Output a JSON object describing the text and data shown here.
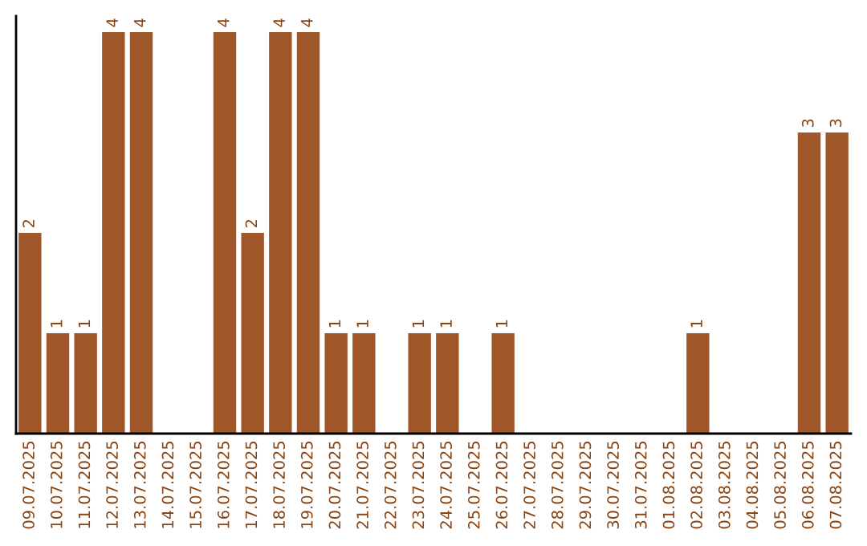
{
  "chart_data": {
    "type": "bar",
    "categories": [
      "09.07.2025",
      "10.07.2025",
      "11.07.2025",
      "12.07.2025",
      "13.07.2025",
      "14.07.2025",
      "15.07.2025",
      "16.07.2025",
      "17.07.2025",
      "18.07.2025",
      "19.07.2025",
      "20.07.2025",
      "21.07.2025",
      "22.07.2025",
      "23.07.2025",
      "24.07.2025",
      "25.07.2025",
      "26.07.2025",
      "27.07.2025",
      "28.07.2025",
      "29.07.2025",
      "30.07.2025",
      "31.07.2025",
      "01.08.2025",
      "02.08.2025",
      "03.08.2025",
      "04.08.2025",
      "05.08.2025",
      "06.08.2025",
      "07.08.2025"
    ],
    "values": [
      2,
      1,
      1,
      4,
      4,
      0,
      0,
      4,
      2,
      4,
      4,
      1,
      1,
      0,
      1,
      1,
      0,
      1,
      0,
      0,
      0,
      0,
      0,
      0,
      1,
      0,
      0,
      0,
      3,
      3
    ],
    "value_labels": [
      "2",
      "1",
      "1",
      "4",
      "4",
      null,
      null,
      "4",
      "2",
      "4",
      "4",
      "1",
      "1",
      null,
      "1",
      "1",
      null,
      "1",
      null,
      null,
      null,
      null,
      null,
      null,
      "1",
      null,
      null,
      null,
      "3",
      "3"
    ],
    "color": "#a0582a",
    "ylim": [
      0,
      4.16
    ],
    "grid": false,
    "legend": false,
    "tick_labels": "x"
  }
}
